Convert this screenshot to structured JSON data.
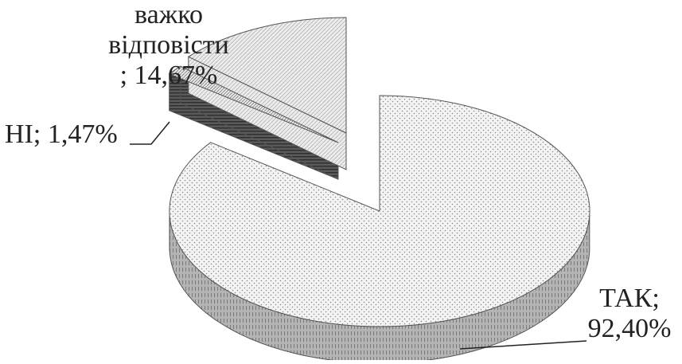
{
  "chart_data": {
    "type": "pie",
    "variant": "3d-exploded",
    "slices": [
      {
        "name": "ТАК",
        "value": 92.4,
        "value_label": "92,40%",
        "label_parts": [
          "ТАК;",
          "92,40%"
        ],
        "pattern": "dots"
      },
      {
        "name": "НІ",
        "value": 1.47,
        "value_label": "1,47%",
        "label_parts": [
          "НІ; 1,47%"
        ],
        "pattern": "stripes"
      },
      {
        "name": "важко відповісти",
        "value": 14.67,
        "value_label": "14,67%",
        "label_parts": [
          "важко",
          "відповісти",
          "; 14,67%"
        ],
        "pattern": "hatch"
      }
    ],
    "colors": {
      "top_fill": "#f2f2f2",
      "side_fill": "#9a9a9a",
      "edge": "#555555",
      "stripe_dark": "#4a4a4a",
      "leader": "#222222"
    }
  }
}
